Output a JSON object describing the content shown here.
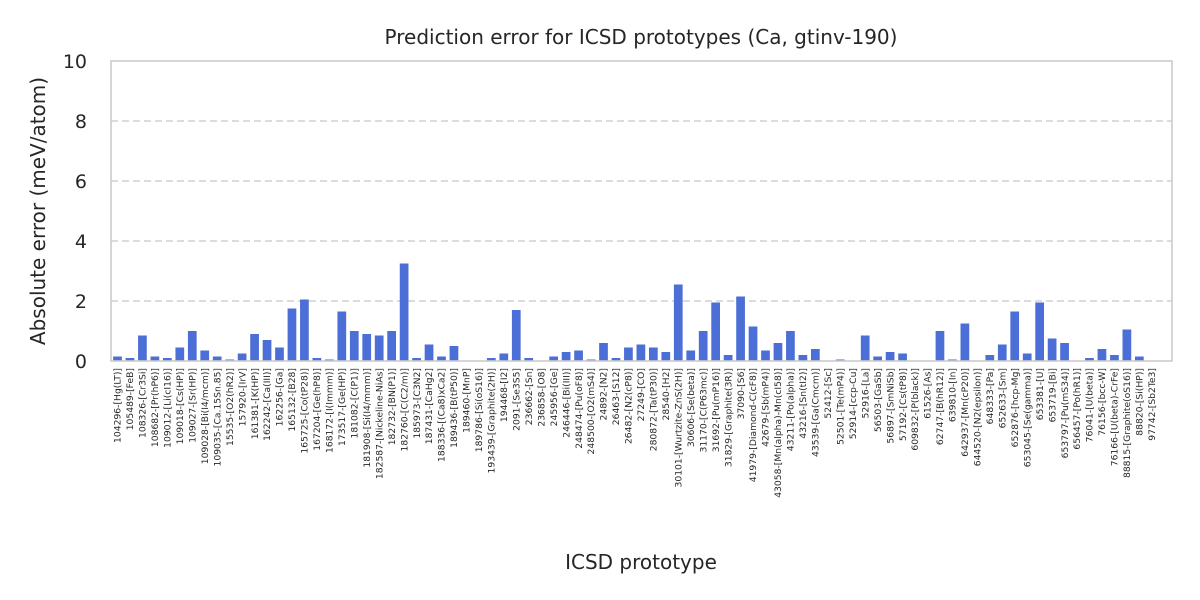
{
  "chart_data": {
    "type": "bar",
    "title": "Prediction error for ICSD prototypes (Ca, gtinv-190)",
    "xlabel": "ICSD prototype",
    "ylabel": "Absolute error (meV/atom)",
    "ylim": [
      0,
      10
    ],
    "yticks": [
      "0",
      "2",
      "4",
      "6",
      "8",
      "10"
    ],
    "grid": "y-dashed",
    "bar_color": "#4b6fd6",
    "categories": [
      "104296-[Hg(LT)]",
      "105489-[FeB]",
      "108326-[Cr3Si]",
      "108682-[Pr(hP6)]",
      "109012-[Li(cI16)]",
      "109018-[Cs(HP)]",
      "109027-[Sr(HP)]",
      "109028-[Bi(I4/mcm)]",
      "109035-[Ca.15Sn.85]",
      "15535-[O2(hR2)]",
      "157920-[IrV]",
      "161381-[K(HP)]",
      "162242-[Ca(III)]",
      "162256-[Ga]",
      "165132-[B28]",
      "165725-[Co(tP28)]",
      "167204-[Ge(hP8)]",
      "168172-[I(Immm)]",
      "173517-[Ge(HP)]",
      "181082-[C(P1)]",
      "181908-[Si(I4/mmm)]",
      "182587-[Nickeline-NiAs]",
      "182732-[BN(P1)]",
      "182760-[C(C2/m)]",
      "185973-[C3N2]",
      "187431-[CaHg2]",
      "188336-[(Ca8)xCa2]",
      "189436-[B(tP50)]",
      "189460-[MnP]",
      "189786-[Si(oS16)]",
      "193439-[Graphite(2H)]",
      "194468-[I2]",
      "2091-[Se3S5]",
      "236662-[Sn]",
      "236858-[O8]",
      "245956-[Ge]",
      "246446-[Bi(III)]",
      "248474-[Pu(oF8)]",
      "248500-[O2(mS4)]",
      "24892-[N2]",
      "26463-[S12]",
      "26482-[N2(cP8)]",
      "27249-[CO]",
      "280872-[Ta(tP30)]",
      "28540-[H2]",
      "30101-[Wurtzite-ZnS(2H)]",
      "30606-[Se(beta)]",
      "31170-[C(P63mc)]",
      "31692-[Pu(mP16)]",
      "31829-[Graphite(3R)]",
      "37090-[S6]",
      "41979-[Diamond-C(cF8)]",
      "42679-[Sb(mP4)]",
      "43058-[Mn(alpha)-Mn(cI58)]",
      "43211-[Po(alpha)]",
      "43216-[Sn(tI2)]",
      "43539-[Ga(Cmcm)]",
      "52412-[Sc]",
      "52501-[Te(mP4)]",
      "52914-[ccp-Cu]",
      "52916-[La]",
      "56503-[GaSb]",
      "56897-[SmNiSb]",
      "57192-[Cs(tP8)]",
      "609832-[P(black)]",
      "61526-[As]",
      "62747-[B(hR12)]",
      "639810-[In]",
      "642937-[Mn(cP20)]",
      "644520-[N2(epsilon)]",
      "648333-[Pa]",
      "652633-[Sm]",
      "652876-[hcp-Mg]",
      "653045-[Se(gamma)]",
      "653381-[U]",
      "653719-[Bi]",
      "653797-[Pu(mS34)]",
      "656457-[Po(hR1)]",
      "76041-[U(beta)]",
      "76156-[bcc-W]",
      "76166-[U(beta)-CrFe]",
      "88815-[Graphite(oS16)]",
      "88820-[Si(HP)]",
      "97742-[Sb2Te3]"
    ],
    "values": [
      0.15,
      0.1,
      0.85,
      0.15,
      0.1,
      0.45,
      1.0,
      0.35,
      0.15,
      0.05,
      0.25,
      0.9,
      0.7,
      0.45,
      1.75,
      2.05,
      0.1,
      0.05,
      1.65,
      1.0,
      0.9,
      0.85,
      1.0,
      3.25,
      0.1,
      0.55,
      0.15,
      0.5,
      0.0,
      0.0,
      0.1,
      0.25,
      1.7,
      0.1,
      0.0,
      0.15,
      0.3,
      0.35,
      0.05,
      0.6,
      0.1,
      0.45,
      0.55,
      0.45,
      0.3,
      2.55,
      0.35,
      1.0,
      1.95,
      0.2,
      2.15,
      1.15,
      0.35,
      0.6,
      1.0,
      0.2,
      0.4,
      0.0,
      0.05,
      0.0,
      0.85,
      0.15,
      0.3,
      0.25,
      0.0,
      0.0,
      1.0,
      0.05,
      1.25,
      0.0,
      0.2,
      0.55,
      1.65,
      0.25,
      1.95,
      0.75,
      0.6,
      0.0,
      0.1,
      0.4,
      0.2,
      1.05,
      0.15,
      0.0
    ]
  }
}
